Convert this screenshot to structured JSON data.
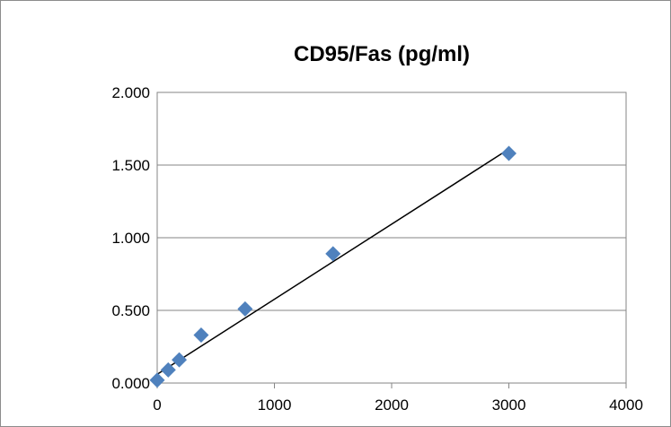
{
  "chart_data": {
    "type": "scatter",
    "title": "CD95/Fas (pg/ml)",
    "xlabel": "",
    "ylabel": "",
    "xlim": [
      0,
      4000
    ],
    "ylim": [
      0,
      2
    ],
    "x_ticks": [
      "0",
      "1000",
      "2000",
      "3000",
      "4000"
    ],
    "y_ticks": [
      "0.000",
      "0.500",
      "1.000",
      "1.500",
      "2.000"
    ],
    "grid": "horizontal",
    "legend": "none",
    "marker": "diamond",
    "series": [
      {
        "points": [
          {
            "x": 0,
            "y": 0.02
          },
          {
            "x": 94,
            "y": 0.09
          },
          {
            "x": 188,
            "y": 0.16
          },
          {
            "x": 375,
            "y": 0.33
          },
          {
            "x": 750,
            "y": 0.51
          },
          {
            "x": 1500,
            "y": 0.89
          },
          {
            "x": 3000,
            "y": 1.58
          }
        ],
        "color": "#4f81bd"
      }
    ],
    "trendline": {
      "type": "linear",
      "x_start": 0,
      "x_end": 3000,
      "y_start": 0.06,
      "y_end": 1.61,
      "color": "#000000"
    }
  }
}
